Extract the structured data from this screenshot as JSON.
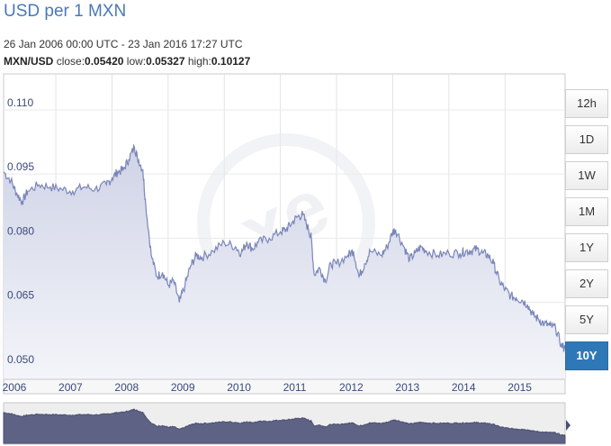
{
  "header": {
    "title": "USD per 1 MXN",
    "date_range": "26 Jan 2006 00:00 UTC - 23 Jan 2016 17:27 UTC",
    "pair": "MXN/USD",
    "close_label": "close:",
    "close_value": "0.05420",
    "low_label": "low:",
    "low_value": "0.05327",
    "high_label": "high:",
    "high_value": "0.10127"
  },
  "range_buttons": [
    {
      "label": "12h",
      "active": false
    },
    {
      "label": "1D",
      "active": false
    },
    {
      "label": "1W",
      "active": false
    },
    {
      "label": "1M",
      "active": false
    },
    {
      "label": "1Y",
      "active": false
    },
    {
      "label": "2Y",
      "active": false
    },
    {
      "label": "5Y",
      "active": false
    },
    {
      "label": "10Y",
      "active": true
    }
  ],
  "colors": {
    "line": "#7a86b8",
    "fill_top": "#cfd3e6",
    "fill_bottom": "#f4f5fa",
    "navigator_fill": "#5e6386",
    "active_button": "#2f78b7"
  },
  "watermark_icon": "xe-logo-icon",
  "chart_data": {
    "type": "area",
    "ylim": [
      0.047,
      0.118
    ],
    "yticks": [
      "0.110",
      "0.095",
      "0.080",
      "0.065",
      "0.050"
    ],
    "ytick_values": [
      0.11,
      0.095,
      0.08,
      0.065,
      0.05
    ],
    "xticks": [
      "2006",
      "2007",
      "2008",
      "2009",
      "2010",
      "2011",
      "2012",
      "2013",
      "2014",
      "2015"
    ],
    "xtick_values": [
      2006.0,
      2007.0,
      2008.0,
      2009.0,
      2010.0,
      2011.0,
      2012.0,
      2013.0,
      2014.0,
      2015.0
    ],
    "xlim": [
      2006.07,
      2016.07
    ],
    "grid": true,
    "series": [
      {
        "x": [
          2006.07,
          2006.2,
          2006.3,
          2006.4,
          2006.5,
          2006.7,
          2006.9,
          2007.1,
          2007.3,
          2007.5,
          2007.7,
          2007.9,
          2008.0,
          2008.1,
          2008.2,
          2008.3,
          2008.4,
          2008.45,
          2008.55,
          2008.6,
          2008.7,
          2008.8,
          2008.9,
          2009.0,
          2009.1,
          2009.2,
          2009.3,
          2009.4,
          2009.5,
          2009.6,
          2009.8,
          2010.0,
          2010.2,
          2010.3,
          2010.4,
          2010.5,
          2010.6,
          2010.8,
          2011.0,
          2011.1,
          2011.2,
          2011.3,
          2011.4,
          2011.5,
          2011.55,
          2011.6,
          2011.7,
          2011.8,
          2011.9,
          2012.0,
          2012.2,
          2012.3,
          2012.4,
          2012.5,
          2012.6,
          2012.8,
          2012.9,
          2013.0,
          2013.05,
          2013.2,
          2013.3,
          2013.4,
          2013.5,
          2013.6,
          2013.8,
          2014.0,
          2014.2,
          2014.3,
          2014.4,
          2014.5,
          2014.6,
          2014.7,
          2014.8,
          2014.9,
          2015.0,
          2015.1,
          2015.2,
          2015.3,
          2015.4,
          2015.5,
          2015.6,
          2015.7,
          2015.8,
          2015.9,
          2016.0,
          2016.07
        ],
        "y": [
          0.0955,
          0.0935,
          0.0905,
          0.0885,
          0.091,
          0.0925,
          0.092,
          0.0915,
          0.091,
          0.092,
          0.0915,
          0.0925,
          0.094,
          0.0955,
          0.096,
          0.0985,
          0.1013,
          0.099,
          0.096,
          0.088,
          0.076,
          0.071,
          0.072,
          0.069,
          0.07,
          0.065,
          0.069,
          0.0735,
          0.076,
          0.0755,
          0.077,
          0.079,
          0.078,
          0.0765,
          0.079,
          0.0775,
          0.079,
          0.08,
          0.0815,
          0.082,
          0.0835,
          0.085,
          0.0855,
          0.082,
          0.08,
          0.0715,
          0.073,
          0.07,
          0.074,
          0.074,
          0.076,
          0.077,
          0.071,
          0.074,
          0.077,
          0.076,
          0.078,
          0.0815,
          0.082,
          0.078,
          0.075,
          0.0765,
          0.078,
          0.077,
          0.076,
          0.0765,
          0.0765,
          0.077,
          0.077,
          0.0775,
          0.0765,
          0.076,
          0.074,
          0.07,
          0.068,
          0.0665,
          0.066,
          0.0655,
          0.0645,
          0.062,
          0.061,
          0.06,
          0.0595,
          0.059,
          0.055,
          0.0542
        ]
      }
    ]
  }
}
